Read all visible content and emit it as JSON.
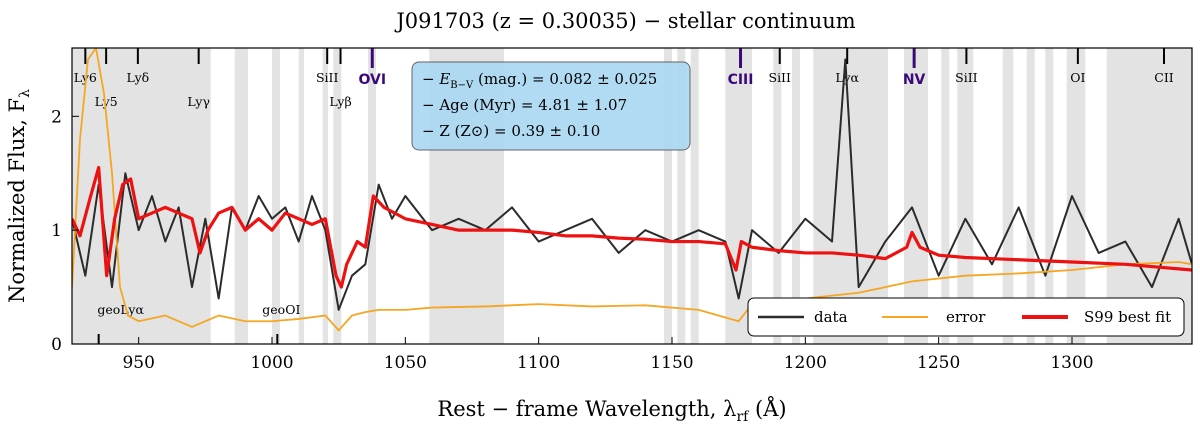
{
  "chart_data": {
    "type": "line",
    "title": "J091703 (z = 0.30035) − stellar continuum",
    "xlabel": "Rest − frame Wavelength,  λ",
    "xlabel_sub": "rf",
    "xlabel_unit": " (Å)",
    "ylabel": "Normalized Flux,  F",
    "ylabel_sub": "λ",
    "xlim": [
      925,
      1345
    ],
    "ylim": [
      0,
      2.6
    ],
    "xticks": [
      950,
      1000,
      1050,
      1100,
      1150,
      1200,
      1250,
      1300
    ],
    "yticks": [
      0,
      1,
      2
    ],
    "masked_regions": [
      [
        925,
        977
      ],
      [
        986,
        991
      ],
      [
        1000,
        1003
      ],
      [
        1010,
        1012
      ],
      [
        1019,
        1021
      ],
      [
        1023,
        1026
      ],
      [
        1036,
        1039
      ],
      [
        1059,
        1087
      ],
      [
        1147,
        1150
      ],
      [
        1152,
        1155
      ],
      [
        1157,
        1160
      ],
      [
        1170,
        1180
      ],
      [
        1188,
        1191
      ],
      [
        1195,
        1198
      ],
      [
        1203,
        1231
      ],
      [
        1237,
        1246
      ],
      [
        1251,
        1254
      ],
      [
        1257,
        1263
      ],
      [
        1274,
        1278
      ],
      [
        1283,
        1286
      ],
      [
        1290,
        1293
      ],
      [
        1298,
        1305
      ],
      [
        1313,
        1345
      ]
    ],
    "line_markers": [
      {
        "label": "Ly6",
        "x": 930,
        "style": "black"
      },
      {
        "label": "Ly5",
        "x": 937.8,
        "style": "black"
      },
      {
        "label": "Lyδ",
        "x": 949.7,
        "style": "black"
      },
      {
        "label": "Lyγ",
        "x": 972.5,
        "style": "black"
      },
      {
        "label": "SiII",
        "x": 1020.7,
        "style": "black"
      },
      {
        "label": "Lyβ",
        "x": 1025.7,
        "style": "black"
      },
      {
        "label": "OVI",
        "x": 1037.6,
        "style": "purple"
      },
      {
        "label": "CIII",
        "x": 1175.7,
        "style": "purple"
      },
      {
        "label": "SiII",
        "x": 1190.4,
        "style": "black"
      },
      {
        "label": "Lyα",
        "x": 1215.7,
        "style": "black"
      },
      {
        "label": "NV",
        "x": 1240.8,
        "style": "purple"
      },
      {
        "label": "SiII",
        "x": 1260.4,
        "style": "black"
      },
      {
        "label": "OI",
        "x": 1302.2,
        "style": "black"
      },
      {
        "label": "CII",
        "x": 1334.5,
        "style": "black"
      }
    ],
    "geo_markers": [
      {
        "label": "geoLyα",
        "x": 935
      },
      {
        "label": "geoOI",
        "x": 1002
      }
    ],
    "series": [
      {
        "name": "data",
        "color": "#2b2b2b",
        "x": [
          925,
          930,
          935,
          940,
          945,
          950,
          955,
          960,
          965,
          970,
          975,
          980,
          985,
          990,
          995,
          1000,
          1005,
          1010,
          1015,
          1020,
          1025,
          1030,
          1035,
          1040,
          1045,
          1050,
          1060,
          1070,
          1080,
          1090,
          1100,
          1110,
          1120,
          1130,
          1140,
          1150,
          1160,
          1170,
          1175,
          1180,
          1190,
          1200,
          1210,
          1215,
          1220,
          1230,
          1240,
          1250,
          1260,
          1270,
          1280,
          1290,
          1300,
          1310,
          1320,
          1330,
          1340,
          1345
        ],
        "y": [
          1.1,
          0.6,
          1.4,
          0.5,
          1.5,
          1.0,
          1.3,
          0.9,
          1.2,
          0.5,
          1.1,
          0.4,
          1.2,
          1.0,
          1.3,
          1.1,
          1.2,
          0.9,
          1.3,
          1.0,
          0.3,
          0.6,
          0.7,
          1.4,
          1.1,
          1.3,
          1.0,
          1.1,
          1.0,
          1.2,
          0.9,
          1.0,
          1.1,
          0.8,
          1.0,
          0.9,
          1.0,
          0.9,
          0.4,
          1.0,
          0.8,
          1.1,
          0.9,
          2.5,
          0.5,
          0.9,
          1.2,
          0.6,
          1.1,
          0.7,
          1.2,
          0.6,
          1.3,
          0.8,
          0.9,
          0.5,
          1.1,
          0.7
        ]
      },
      {
        "name": "error",
        "color": "#f5a623",
        "x": [
          925,
          928,
          931,
          934,
          937,
          940,
          943,
          946,
          950,
          960,
          970,
          975,
          980,
          990,
          1000,
          1010,
          1020,
          1025,
          1030,
          1035,
          1040,
          1050,
          1060,
          1080,
          1100,
          1120,
          1140,
          1160,
          1175,
          1180,
          1200,
          1220,
          1230,
          1240,
          1260,
          1280,
          1300,
          1320,
          1340,
          1345
        ],
        "y": [
          0.5,
          1.8,
          2.5,
          2.6,
          2.2,
          1.5,
          0.5,
          0.25,
          0.2,
          0.25,
          0.15,
          0.2,
          0.25,
          0.2,
          0.2,
          0.22,
          0.25,
          0.12,
          0.25,
          0.28,
          0.3,
          0.3,
          0.32,
          0.33,
          0.35,
          0.33,
          0.34,
          0.3,
          0.2,
          0.35,
          0.4,
          0.45,
          0.5,
          0.55,
          0.6,
          0.62,
          0.65,
          0.7,
          0.72,
          0.7
        ]
      },
      {
        "name": "S99 best fit",
        "color": "#ee1111",
        "x": [
          925,
          928,
          932,
          935,
          938,
          941,
          944,
          947,
          950,
          955,
          960,
          965,
          970,
          973,
          976,
          980,
          985,
          990,
          995,
          1000,
          1005,
          1010,
          1015,
          1020,
          1024,
          1026,
          1028,
          1032,
          1035,
          1038,
          1042,
          1050,
          1060,
          1070,
          1080,
          1090,
          1100,
          1110,
          1120,
          1130,
          1140,
          1150,
          1160,
          1170,
          1174,
          1176,
          1180,
          1190,
          1200,
          1210,
          1220,
          1230,
          1238,
          1240,
          1243,
          1250,
          1260,
          1280,
          1300,
          1320,
          1340,
          1345
        ],
        "y": [
          1.1,
          0.95,
          1.3,
          1.55,
          0.6,
          1.1,
          1.4,
          1.45,
          1.1,
          1.15,
          1.2,
          1.15,
          1.1,
          0.8,
          1.0,
          1.15,
          1.2,
          1.0,
          1.1,
          1.0,
          1.15,
          1.1,
          1.05,
          1.1,
          0.6,
          0.5,
          0.7,
          0.9,
          0.85,
          1.3,
          1.2,
          1.1,
          1.05,
          1.0,
          1.0,
          1.0,
          0.98,
          0.95,
          0.95,
          0.93,
          0.92,
          0.9,
          0.9,
          0.88,
          0.65,
          0.9,
          0.85,
          0.82,
          0.8,
          0.8,
          0.78,
          0.75,
          0.85,
          0.98,
          0.85,
          0.78,
          0.76,
          0.74,
          0.72,
          0.7,
          0.66,
          0.65
        ]
      }
    ],
    "legend": {
      "location": "bottom-right",
      "entries": [
        {
          "label": "data",
          "color": "#2b2b2b"
        },
        {
          "label": "error",
          "color": "#f5a623"
        },
        {
          "label": "S99 best fit",
          "color": "#ee1111"
        }
      ]
    },
    "annotation": {
      "lines": [
        {
          "prefix": "− ",
          "emph": "E",
          "sub": "B−V",
          "text": " (mag.) = 0.082  ±  0.025"
        },
        {
          "prefix": "− ",
          "emph": "",
          "sub": "",
          "text": "Age (Myr) = 4.81  ±  1.07"
        },
        {
          "prefix": "− ",
          "emph": "",
          "sub": "",
          "text": "Z (Z⊙) = 0.39  ±  0.10"
        }
      ],
      "box_color": "#a9d8f2",
      "location": "top-center"
    }
  }
}
